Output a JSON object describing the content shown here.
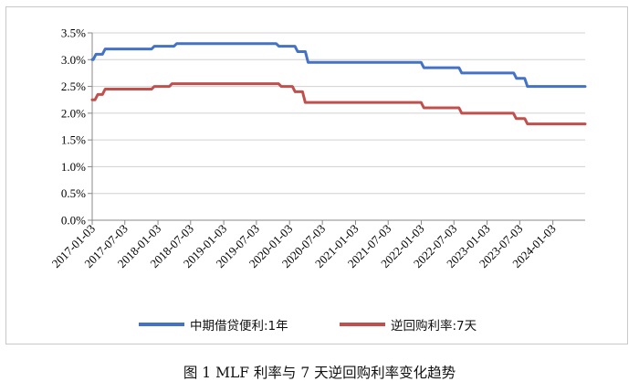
{
  "chart_data": {
    "type": "line",
    "title": "",
    "caption": "图 1 MLF 利率与 7 天逆回购利率变化趋势",
    "xlabel": "",
    "ylabel": "",
    "ylim": [
      0,
      3.5
    ],
    "y_ticks": [
      "0.0%",
      "0.5%",
      "1.0%",
      "1.5%",
      "2.0%",
      "2.5%",
      "3.0%",
      "3.5%"
    ],
    "x_ticks": [
      "2017-01-03",
      "2017-07-03",
      "2018-01-03",
      "2018-07-03",
      "2019-01-03",
      "2019-07-03",
      "2020-01-03",
      "2020-07-03",
      "2021-01-03",
      "2021-07-03",
      "2022-01-03",
      "2022-07-03",
      "2023-01-03",
      "2023-07-03",
      "2024-01-03"
    ],
    "x_range": [
      "2017-01-03",
      "2024-06-30"
    ],
    "legend_position": "bottom",
    "series": [
      {
        "name": "中期借贷便利:1年",
        "color": "#4472c4",
        "points": [
          [
            "2017-01-03",
            3.0
          ],
          [
            "2017-01-24",
            3.1
          ],
          [
            "2017-03-16",
            3.2
          ],
          [
            "2017-12-14",
            3.25
          ],
          [
            "2018-04-17",
            3.3
          ],
          [
            "2019-11-05",
            3.25
          ],
          [
            "2020-02-17",
            3.15
          ],
          [
            "2020-04-15",
            2.95
          ],
          [
            "2022-01-17",
            2.85
          ],
          [
            "2022-08-15",
            2.75
          ],
          [
            "2023-06-15",
            2.65
          ],
          [
            "2023-08-15",
            2.5
          ],
          [
            "2024-06-30",
            2.5
          ]
        ]
      },
      {
        "name": "逆回购利率:7天",
        "color": "#c0504d",
        "points": [
          [
            "2017-01-03",
            2.25
          ],
          [
            "2017-02-03",
            2.35
          ],
          [
            "2017-03-16",
            2.45
          ],
          [
            "2017-12-14",
            2.5
          ],
          [
            "2018-03-22",
            2.55
          ],
          [
            "2019-11-18",
            2.5
          ],
          [
            "2020-02-03",
            2.4
          ],
          [
            "2020-03-30",
            2.2
          ],
          [
            "2022-01-17",
            2.1
          ],
          [
            "2022-08-15",
            2.0
          ],
          [
            "2023-06-13",
            1.9
          ],
          [
            "2023-08-15",
            1.8
          ],
          [
            "2024-06-30",
            1.8
          ]
        ]
      }
    ]
  }
}
